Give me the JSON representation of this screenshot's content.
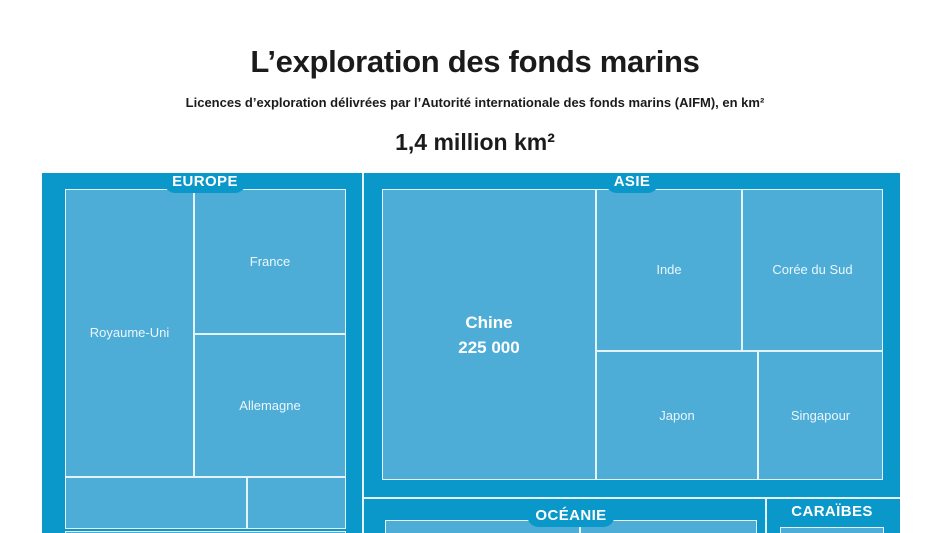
{
  "header": {
    "title": "L’exploration des fonds marins",
    "subtitle": "Licences d’exploration délivrées par l’Autorité internationale des fonds marins (AIFM), en km²",
    "total": "1,4 million km²"
  },
  "colors": {
    "canvas": "#0a97c9",
    "cell": "#4eadd7",
    "line": "#e4f2f9",
    "header_text": "#1b1b1b"
  },
  "treemap": {
    "europe": {
      "label": "EUROPE",
      "royaume_uni": "Royaume-Uni",
      "france": "France",
      "allemagne": "Allemagne"
    },
    "asie": {
      "label": "ASIE",
      "chine": "Chine",
      "chine_value": "225 000",
      "inde": "Inde",
      "coree_du_sud": "Corée du Sud",
      "japon": "Japon",
      "singapour": "Singapour"
    },
    "oceanie": {
      "label": "OCÉANIE"
    },
    "caraibes": {
      "label": "CARAÏBES"
    }
  },
  "chart_data": {
    "type": "treemap",
    "title": "L’exploration des fonds marins",
    "subtitle": "Licences d’exploration délivrées par l’Autorité internationale des fonds marins (AIFM), en km²",
    "unit": "km²",
    "total_label": "1,4 million km²",
    "total_km2": 1400000,
    "regions": [
      {
        "name": "EUROPE",
        "countries": [
          "Royaume-Uni",
          "France",
          "Allemagne"
        ],
        "value_labels": {}
      },
      {
        "name": "ASIE",
        "countries": [
          "Chine",
          "Inde",
          "Corée du Sud",
          "Japon",
          "Singapour"
        ],
        "value_labels": {
          "Chine": "225 000"
        },
        "values": {
          "Chine": 225000
        }
      },
      {
        "name": "OCÉANIE",
        "countries": [],
        "partially_cut_off": true
      },
      {
        "name": "CARAÏBES",
        "countries": [],
        "partially_cut_off": true
      }
    ],
    "legend_position": "none",
    "notes": "Treemap clipped at bottom of image; cell areas proportional to licensed exploration surface"
  }
}
